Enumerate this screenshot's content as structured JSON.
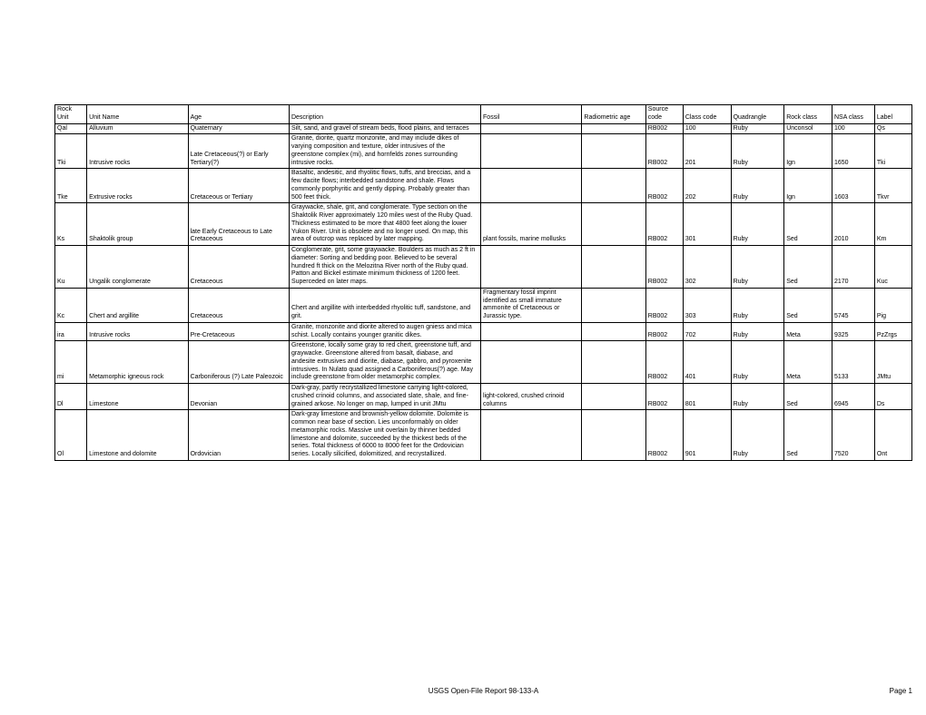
{
  "headers": {
    "rockunit": "Rock Unit",
    "unitname": "Unit Name",
    "age": "Age",
    "description": "Description",
    "fossil": "Fossil",
    "radiometric": "Radiometric age",
    "source": "Source code",
    "classcode": "Class code",
    "quadrangle": "Quadrangle",
    "rockclass": "Rock class",
    "nsaclass": "NSA class",
    "label": "Label"
  },
  "rows": [
    {
      "rockunit": "Qal",
      "unitname": "Alluvium",
      "age": "Quaternary",
      "description": "Silt, sand, and gravel of stream beds, flood plains, and terraces",
      "fossil": "",
      "radiometric": "",
      "source": "RB002",
      "classcode": "100",
      "quadrangle": "Ruby",
      "rockclass": "Unconsol",
      "nsaclass": "100",
      "label": "Qs"
    },
    {
      "rockunit": "Tki",
      "unitname": "Intrusive rocks",
      "age": "Late Cretaceous(?) or Early Tertiary(?)",
      "description": "Granite, diorite, quartz monzonite, and  may include dikes of varying composition and texture, older intrusives of the greenstone complex (mi), and  hornfelds zones surrounding intrusive rocks.",
      "fossil": "",
      "radiometric": "",
      "source": "RB002",
      "classcode": "201",
      "quadrangle": "Ruby",
      "rockclass": "Ign",
      "nsaclass": "1650",
      "label": "Tki"
    },
    {
      "rockunit": "Tke",
      "unitname": "Extrusive rocks",
      "age": "Cretaceous or Tertiary",
      "description": "Basaltic, andesitic, and rhyolitic flows, tuffs, and breccias, and a few dacite flows; interbedded  sandstone and shale.  Flows commonly porphyritic and gently dipping.  Probably greater than 500 feet thick.",
      "fossil": "",
      "radiometric": "",
      "source": "RB002",
      "classcode": "202",
      "quadrangle": "Ruby",
      "rockclass": "Ign",
      "nsaclass": "1603",
      "label": "Tkvr"
    },
    {
      "rockunit": "Ks",
      "unitname": "Shaktolik group",
      "age": "late Early Cretaceous to Late Cretaceous",
      "description": "Graywacke, shale, grit, and conglomerate.  Type section on the Shaktolik River approximately 120 miles west of the Ruby Quad.  Thickness estimated to be more that 4800 feet along the lower Yukon River.  Unit is obsolete and no longer used.  On map, this area of outcrop was replaced by later mapping.",
      "fossil": "plant fossils, marine mollusks",
      "radiometric": "",
      "source": "RB002",
      "classcode": "301",
      "quadrangle": "Ruby",
      "rockclass": "Sed",
      "nsaclass": "2010",
      "label": "Km"
    },
    {
      "rockunit": "Ku",
      "unitname": "Ungalik conglomerate",
      "age": "Cretaceous",
      "description": "Conglomerate, grit, some graywacke.  Boulders as much as 2 ft in diameter: Sorting and bedding poor.   Believed  to be several hundred ft thick on the Melozitna River north of the Ruby quad.   Patton and Bickel estimate minimum thickness of 1200 feet.  Superceded on later maps.",
      "fossil": "",
      "radiometric": "",
      "source": "RB002",
      "classcode": "302",
      "quadrangle": "Ruby",
      "rockclass": "Sed",
      "nsaclass": "2170",
      "label": "Kuc"
    },
    {
      "rockunit": "Kc",
      "unitname": "Chert and argillite",
      "age": "Cretaceous",
      "description": "Chert and argillite with interbedded rhyolitic tuff, sandstone, and grit.",
      "fossil": "Fragmentary fossil imprint identified as small immature ammonite of Cretaceous or Jurassic type.",
      "radiometric": "",
      "source": "RB002",
      "classcode": "303",
      "quadrangle": "Ruby",
      "rockclass": "Sed",
      "nsaclass": "5745",
      "label": "Pig"
    },
    {
      "rockunit": "ira",
      "unitname": "Intrusive rocks",
      "age": "Pre-Cretaceous",
      "description": "Granite, monzonite and diorite altered to augen gniess and mica schist.  Locally contains younger granitic dikes.",
      "fossil": "",
      "radiometric": "",
      "source": "RB002",
      "classcode": "702",
      "quadrangle": "Ruby",
      "rockclass": "Meta",
      "nsaclass": "9325",
      "label": "PzZrgs"
    },
    {
      "rockunit": "mi",
      "unitname": "Metamorphic igneous rock",
      "age": "Carboniferous (?) Late Paleozoic",
      "description": "Greenstone, locally some gray to red chert, greenstone tuff, and graywacke. Greenstone altered from  basalt, diabase, and andesite extrusives and diorite, diabase, gabbro, and pyroxenite intrusives.  In Nulato quad assigned a Carboniferous(?)  age.  May include greenstone from older metamorphic complex.",
      "fossil": "",
      "radiometric": "",
      "source": "RB002",
      "classcode": "401",
      "quadrangle": "Ruby",
      "rockclass": "Meta",
      "nsaclass": "5133",
      "label": "JMtu"
    },
    {
      "rockunit": "Dl",
      "unitname": "Limestone",
      "age": "Devonian",
      "description": "Dark-gray, partly recrystallized limestone carrying light-colored, crushed crinoid columns, and  associated slate, shale, and fine-grained arkose.  No longer on map, lumped in unit JMtu",
      "fossil": "light-colored, crushed crinoid columns",
      "radiometric": "",
      "source": "RB002",
      "classcode": "801",
      "quadrangle": "Ruby",
      "rockclass": "Sed",
      "nsaclass": "6945",
      "label": "Ds"
    },
    {
      "rockunit": "Ol",
      "unitname": "Limestone and dolomite",
      "age": "Ordovician",
      "description": "Dark-gray limestone and brownish-yellow dolomite. Dolomite is common near base of section.  Lies unconformably on older metamorphic rocks.  Massive unit overlain by thinner bedded limestone and dolomite, succeeded by the thickest beds of the series.  Total thickness of 6000 to 8000 feet for the Ordovician series.  Locally silicified, dolomitized, and recrystallized.",
      "fossil": "",
      "radiometric": "",
      "source": "RB002",
      "classcode": "901",
      "quadrangle": "Ruby",
      "rockclass": "Sed",
      "nsaclass": "7520",
      "label": "Ont"
    }
  ],
  "footer": {
    "center": "USGS Open-File Report 98-133-A",
    "right": "Page 1"
  }
}
